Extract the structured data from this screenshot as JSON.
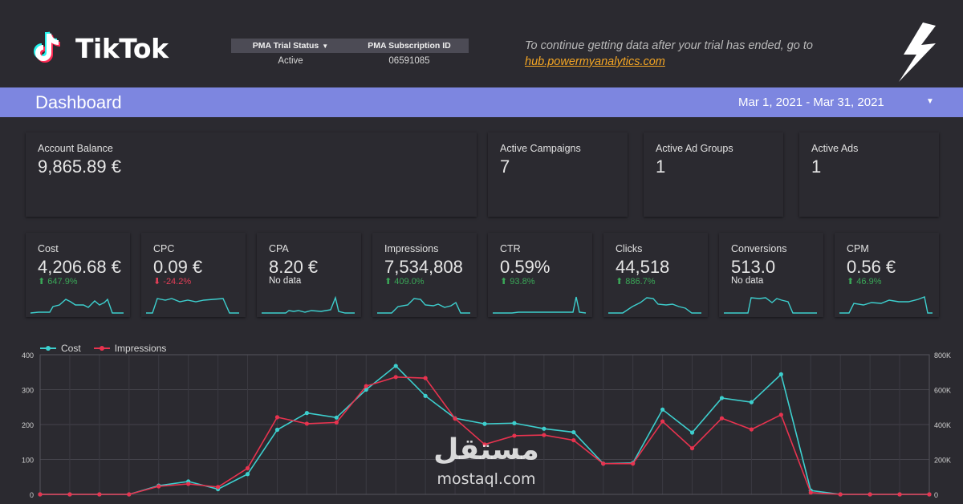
{
  "header": {
    "logo_text": "TikTok",
    "pma": {
      "status_header": "PMA Trial Status",
      "status_value": "Active",
      "subscription_header": "PMA Subscription ID",
      "subscription_value": "06591085"
    },
    "notice_text": "To continue getting data after your trial has ended, go to",
    "notice_link": "hub.powermyanalytics.com"
  },
  "dashboard": {
    "title": "Dashboard",
    "date_range": "Mar 1, 2021 - Mar 31, 2021"
  },
  "summary": [
    {
      "label": "Account Balance",
      "value": "9,865.89 €"
    },
    {
      "label": "Active Campaigns",
      "value": "7"
    },
    {
      "label": "Active Ad Groups",
      "value": "1"
    },
    {
      "label": "Active Ads",
      "value": "1"
    }
  ],
  "kpis": [
    {
      "label": "Cost",
      "value": "4,206.68 €",
      "delta": "647.9%",
      "dir": "up"
    },
    {
      "label": "CPC",
      "value": "0.09 €",
      "delta": "-24.2%",
      "dir": "down"
    },
    {
      "label": "CPA",
      "value": "8.20 €",
      "delta": "No data",
      "dir": "none"
    },
    {
      "label": "Impressions",
      "value": "7,534,808",
      "delta": "409.0%",
      "dir": "up"
    },
    {
      "label": "CTR",
      "value": "0.59%",
      "delta": "93.8%",
      "dir": "up"
    },
    {
      "label": "Clicks",
      "value": "44,518",
      "delta": "886.7%",
      "dir": "up"
    },
    {
      "label": "Conversions",
      "value": "513.0",
      "delta": "No data",
      "dir": "none"
    },
    {
      "label": "CPM",
      "value": "0.56 €",
      "delta": "46.9%",
      "dir": "up"
    }
  ],
  "colors": {
    "cost": "#3dcfce",
    "impressions": "#e8334f",
    "spark": "#3dcfce",
    "accent_bar": "#7d86e0",
    "up": "#3aa757",
    "down": "#e53e57"
  },
  "chart_data": {
    "type": "line",
    "legend": [
      "Cost",
      "Impressions"
    ],
    "legend_placement": "top-left",
    "grid": true,
    "left_axis": {
      "ticks": [
        "0",
        "100",
        "200",
        "300",
        "400"
      ],
      "range": [
        0,
        400
      ]
    },
    "right_axis": {
      "ticks": [
        "0",
        "200K",
        "400K",
        "600K",
        "800K"
      ],
      "range": [
        0,
        800000
      ]
    },
    "series": [
      {
        "name": "Cost",
        "axis": "left",
        "values": [
          0,
          0,
          0,
          0,
          25,
          37,
          15,
          58,
          185,
          233,
          220,
          300,
          368,
          282,
          218,
          202,
          204,
          188,
          178,
          88,
          90,
          243,
          177,
          276,
          264,
          344,
          11,
          0,
          0,
          0,
          0
        ]
      },
      {
        "name": "Impressions",
        "axis": "right",
        "values": [
          0,
          0,
          0,
          0,
          46000,
          60000,
          42000,
          150000,
          442000,
          405000,
          412000,
          620000,
          672000,
          666000,
          434000,
          286000,
          336000,
          340000,
          310000,
          176000,
          176000,
          418000,
          264000,
          436000,
          372000,
          456000,
          10000,
          0,
          0,
          0,
          0
        ]
      }
    ]
  },
  "watermark": {
    "arabic": "مستقل",
    "latin": "mostaql.com"
  }
}
